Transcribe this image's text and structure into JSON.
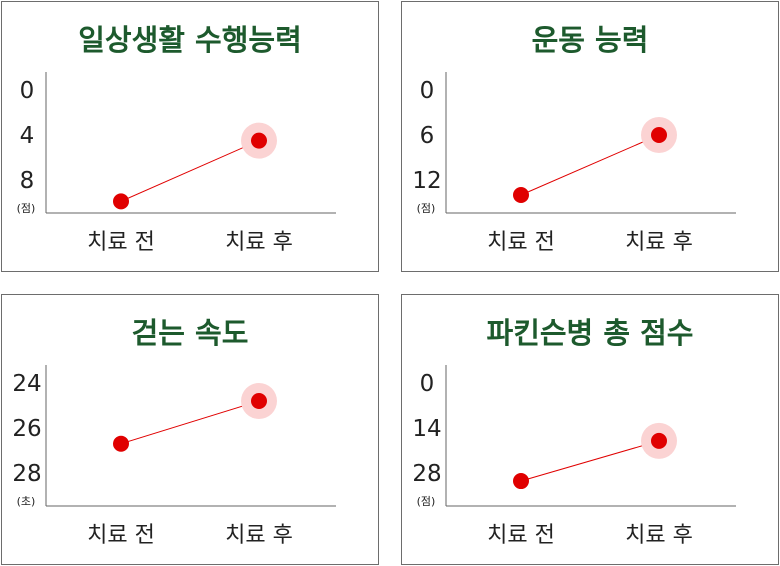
{
  "colors": {
    "point": "#e00000",
    "halo": "#fbd3d3",
    "line": "#e00000",
    "title": "#1d5a2d"
  },
  "chart_data": [
    {
      "type": "line",
      "title": "일상생활 수행능력",
      "unit": "(점)",
      "categories": [
        "치료 전",
        "치료 후"
      ],
      "yticks": [
        "0",
        "4",
        "8"
      ],
      "ylim": [
        0,
        8
      ],
      "y_inverted": true,
      "values": [
        9.9,
        4.5
      ],
      "highlight_index": 1
    },
    {
      "type": "line",
      "title": "운동 능력",
      "unit": "(점)",
      "categories": [
        "치료 전",
        "치료 후"
      ],
      "yticks": [
        "0",
        "6",
        "12"
      ],
      "ylim": [
        0,
        12
      ],
      "y_inverted": true,
      "values": [
        14,
        6
      ],
      "highlight_index": 1
    },
    {
      "type": "line",
      "title": "걷는 속도",
      "unit": "(초)",
      "categories": [
        "치료 전",
        "치료 후"
      ],
      "yticks": [
        "24",
        "26",
        "28"
      ],
      "ylim": [
        24,
        28
      ],
      "y_inverted": true,
      "values": [
        26.7,
        24.8
      ],
      "highlight_index": 1
    },
    {
      "type": "line",
      "title": "파킨슨병 총 점수",
      "unit": "(점)",
      "categories": [
        "치료 전",
        "치료 후"
      ],
      "yticks": [
        "0",
        "14",
        "28"
      ],
      "ylim": [
        0,
        28
      ],
      "y_inverted": true,
      "values": [
        30.5,
        18
      ],
      "highlight_index": 1
    }
  ]
}
